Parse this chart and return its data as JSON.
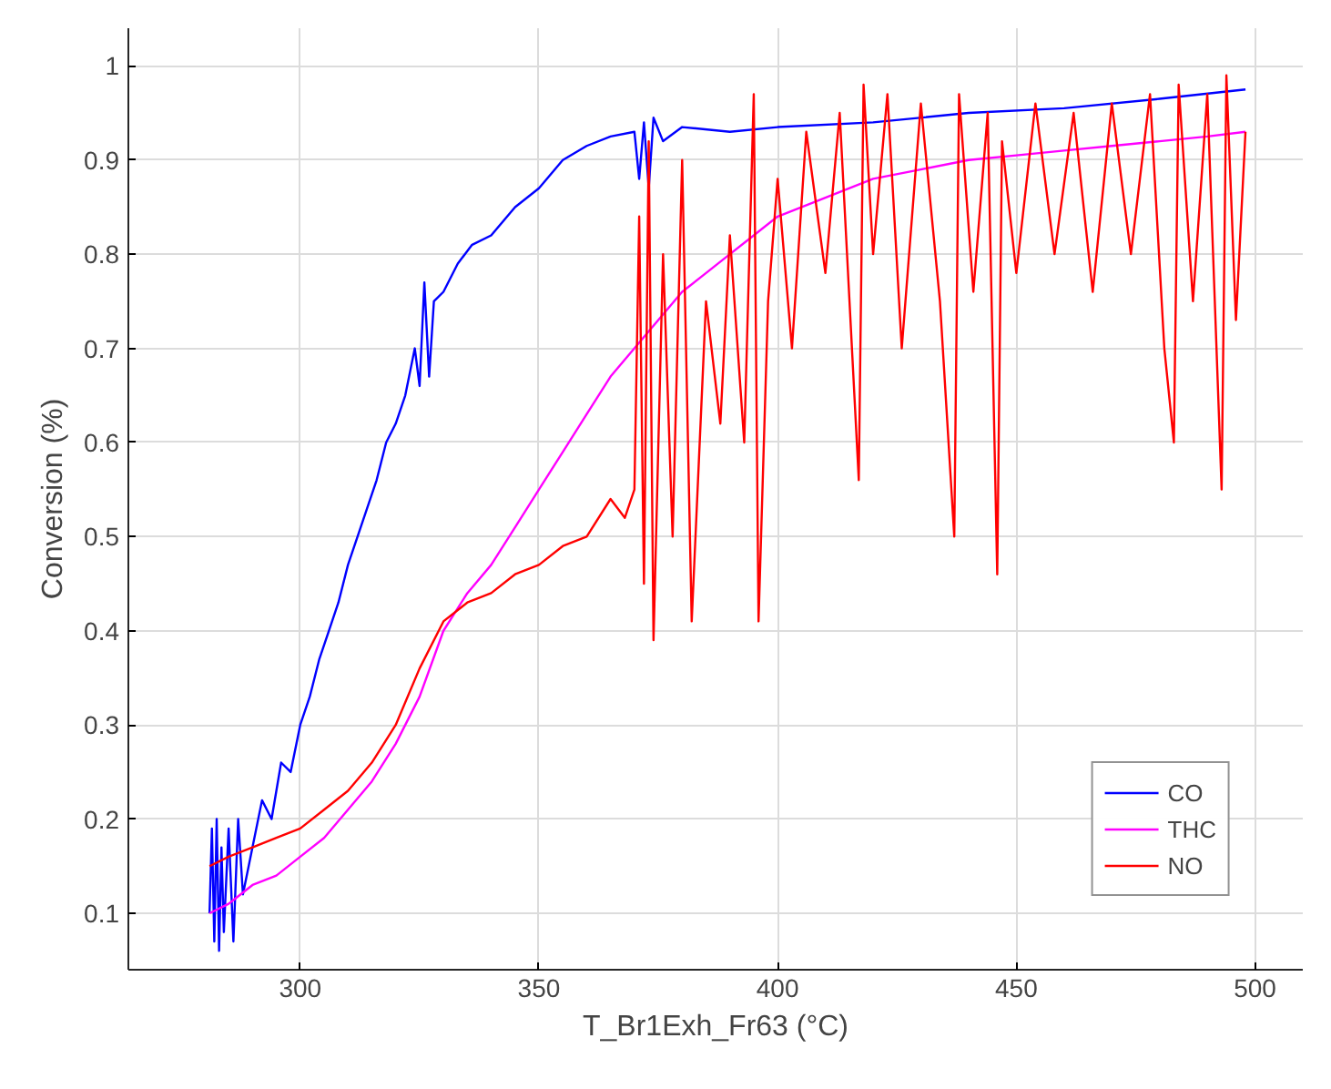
{
  "chart_data": {
    "type": "line",
    "xlabel": "T_Br1Exh_Fr63 (°C)",
    "ylabel": "Conversion (%)",
    "xlim": [
      264,
      510
    ],
    "ylim": [
      0.04,
      1.04
    ],
    "xticks": [
      300,
      350,
      400,
      450,
      500
    ],
    "yticks": [
      0.1,
      0.2,
      0.3,
      0.4,
      0.5,
      0.6,
      0.7,
      0.8,
      0.9,
      1
    ],
    "grid": true,
    "legend": "bottom right",
    "marker": "none",
    "line_style": "solid",
    "series": [
      {
        "name": "CO",
        "color": "#0000ff",
        "x": [
          281,
          281.5,
          282,
          282.5,
          283,
          283.5,
          284,
          285,
          286,
          287,
          288,
          290,
          292,
          294,
          296,
          298,
          300,
          302,
          304,
          306,
          308,
          310,
          312,
          314,
          316,
          318,
          320,
          322,
          324,
          325,
          326,
          327,
          328,
          330,
          333,
          336,
          340,
          345,
          350,
          355,
          360,
          365,
          370,
          371,
          372,
          373,
          374,
          376,
          380,
          390,
          400,
          420,
          440,
          460,
          480,
          498
        ],
        "values": [
          0.1,
          0.19,
          0.07,
          0.2,
          0.06,
          0.17,
          0.08,
          0.19,
          0.07,
          0.2,
          0.12,
          0.17,
          0.22,
          0.2,
          0.26,
          0.25,
          0.3,
          0.33,
          0.37,
          0.4,
          0.43,
          0.47,
          0.5,
          0.53,
          0.56,
          0.6,
          0.62,
          0.65,
          0.7,
          0.66,
          0.77,
          0.67,
          0.75,
          0.76,
          0.79,
          0.81,
          0.82,
          0.85,
          0.87,
          0.9,
          0.915,
          0.925,
          0.93,
          0.88,
          0.94,
          0.87,
          0.945,
          0.92,
          0.935,
          0.93,
          0.935,
          0.94,
          0.95,
          0.955,
          0.965,
          0.975
        ]
      },
      {
        "name": "THC",
        "color": "#ff00ff",
        "x": [
          281,
          285,
          290,
          295,
          300,
          305,
          310,
          315,
          320,
          325,
          330,
          335,
          340,
          345,
          350,
          355,
          360,
          365,
          370,
          375,
          380,
          385,
          390,
          395,
          400,
          410,
          420,
          430,
          440,
          450,
          460,
          470,
          480,
          490,
          498
        ],
        "values": [
          0.1,
          0.11,
          0.13,
          0.14,
          0.16,
          0.18,
          0.21,
          0.24,
          0.28,
          0.33,
          0.4,
          0.44,
          0.47,
          0.51,
          0.55,
          0.59,
          0.63,
          0.67,
          0.7,
          0.73,
          0.76,
          0.78,
          0.8,
          0.82,
          0.84,
          0.86,
          0.88,
          0.89,
          0.9,
          0.905,
          0.91,
          0.915,
          0.92,
          0.925,
          0.93
        ]
      },
      {
        "name": "NO",
        "color": "#ff0000",
        "x": [
          281,
          285,
          290,
          295,
          300,
          305,
          310,
          315,
          320,
          325,
          330,
          335,
          340,
          345,
          350,
          355,
          360,
          365,
          368,
          370,
          371,
          372,
          373,
          374,
          376,
          378,
          380,
          382,
          385,
          388,
          390,
          393,
          395,
          396,
          398,
          400,
          403,
          406,
          410,
          413,
          417,
          418,
          420,
          423,
          426,
          430,
          434,
          437,
          438,
          441,
          444,
          446,
          447,
          450,
          454,
          458,
          462,
          466,
          470,
          474,
          478,
          481,
          483,
          484,
          487,
          490,
          493,
          494,
          496,
          498
        ],
        "values": [
          0.15,
          0.16,
          0.17,
          0.18,
          0.19,
          0.21,
          0.23,
          0.26,
          0.3,
          0.36,
          0.41,
          0.43,
          0.44,
          0.46,
          0.47,
          0.49,
          0.5,
          0.54,
          0.52,
          0.55,
          0.84,
          0.45,
          0.92,
          0.39,
          0.8,
          0.5,
          0.9,
          0.41,
          0.75,
          0.62,
          0.82,
          0.6,
          0.97,
          0.41,
          0.75,
          0.88,
          0.7,
          0.93,
          0.78,
          0.95,
          0.56,
          0.98,
          0.8,
          0.97,
          0.7,
          0.96,
          0.75,
          0.5,
          0.97,
          0.76,
          0.95,
          0.46,
          0.92,
          0.78,
          0.96,
          0.8,
          0.95,
          0.76,
          0.96,
          0.8,
          0.97,
          0.7,
          0.6,
          0.98,
          0.75,
          0.97,
          0.55,
          0.99,
          0.73,
          0.93
        ]
      }
    ]
  }
}
